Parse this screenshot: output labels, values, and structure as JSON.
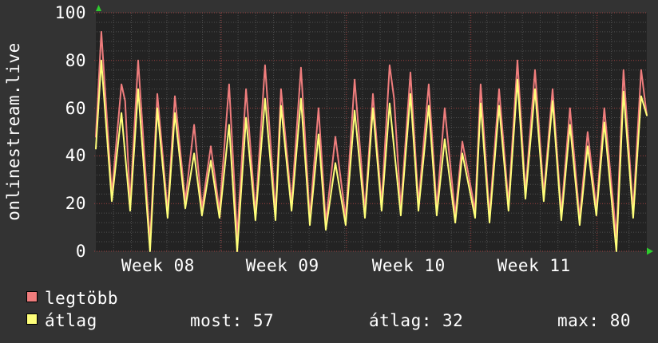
{
  "graph": {
    "vertical_label": "onlinestream.live",
    "colors": {
      "background": "#333333",
      "canvas": "#232323",
      "grid_minor": "#4f4f4f",
      "grid_major": "#9c4040",
      "text": "#ffffff",
      "arrow": "#2ecc2e",
      "series_max": "#ef7d7d",
      "series_avg": "#ffff7a"
    }
  },
  "chart_data": {
    "type": "line",
    "title": "",
    "vertical_label": "onlinestream.live",
    "grid": true,
    "legend_position": "bottom-left",
    "x_axis": {
      "unit": "days",
      "total_days": 31,
      "week_gridlines_days": [
        7.05,
        14.1,
        21.1,
        28.2
      ],
      "tick_labels": [
        {
          "label": "Week 08",
          "day": 3.5
        },
        {
          "label": "Week 09",
          "day": 10.5
        },
        {
          "label": "Week 10",
          "day": 17.6
        },
        {
          "label": "Week 11",
          "day": 24.65
        }
      ]
    },
    "y_axis": {
      "min": 0,
      "max": 100,
      "major_step": 20,
      "minor_step": 4,
      "tick_labels": [
        {
          "label": "100",
          "value": 100
        },
        {
          "label": "80",
          "value": 80
        },
        {
          "label": "60",
          "value": 60
        },
        {
          "label": "40",
          "value": 40
        },
        {
          "label": "20",
          "value": 20
        },
        {
          "label": "0",
          "value": 0
        }
      ]
    },
    "series": [
      {
        "name": "legtöbb",
        "role": "max",
        "color": "#ef7d7d",
        "points": [
          [
            0,
            48
          ],
          [
            0.31,
            92
          ],
          [
            0.9,
            24
          ],
          [
            1.44,
            70
          ],
          [
            1.65,
            63
          ],
          [
            1.93,
            20
          ],
          [
            2.38,
            80
          ],
          [
            3.05,
            4
          ],
          [
            3.46,
            66
          ],
          [
            4.04,
            17
          ],
          [
            4.45,
            65
          ],
          [
            5.03,
            21
          ],
          [
            5.53,
            53
          ],
          [
            5.97,
            18
          ],
          [
            6.47,
            44
          ],
          [
            6.96,
            17
          ],
          [
            7.5,
            70
          ],
          [
            7.95,
            6
          ],
          [
            8.45,
            68
          ],
          [
            8.98,
            16
          ],
          [
            9.52,
            78
          ],
          [
            10.11,
            16
          ],
          [
            10.42,
            68
          ],
          [
            11.01,
            20
          ],
          [
            11.54,
            77
          ],
          [
            12.04,
            14
          ],
          [
            12.53,
            60
          ],
          [
            12.94,
            12
          ],
          [
            13.48,
            48
          ],
          [
            14.06,
            14
          ],
          [
            14.56,
            72
          ],
          [
            15.14,
            17
          ],
          [
            15.59,
            66
          ],
          [
            16.08,
            20
          ],
          [
            16.53,
            78
          ],
          [
            16.78,
            64
          ],
          [
            17.16,
            18
          ],
          [
            17.7,
            75
          ],
          [
            18.15,
            20
          ],
          [
            18.73,
            70
          ],
          [
            19.18,
            18
          ],
          [
            19.63,
            60
          ],
          [
            20.22,
            15
          ],
          [
            20.62,
            46
          ],
          [
            21.34,
            17
          ],
          [
            21.65,
            70
          ],
          [
            22.15,
            15
          ],
          [
            22.69,
            68
          ],
          [
            23.22,
            20
          ],
          [
            23.72,
            80
          ],
          [
            24.17,
            25
          ],
          [
            24.71,
            76
          ],
          [
            25.2,
            24
          ],
          [
            25.7,
            68
          ],
          [
            26.19,
            16
          ],
          [
            26.68,
            60
          ],
          [
            27.22,
            14
          ],
          [
            27.67,
            50
          ],
          [
            28.16,
            18
          ],
          [
            28.61,
            60
          ],
          [
            29.29,
            6
          ],
          [
            29.69,
            76
          ],
          [
            30.23,
            17
          ],
          [
            30.68,
            76
          ],
          [
            31,
            57
          ]
        ]
      },
      {
        "name": "átlag",
        "role": "average",
        "color": "#ffff7a",
        "points": [
          [
            0,
            43
          ],
          [
            0.31,
            80
          ],
          [
            0.9,
            21
          ],
          [
            1.44,
            58
          ],
          [
            1.93,
            17
          ],
          [
            2.38,
            68
          ],
          [
            3.05,
            0
          ],
          [
            3.46,
            60
          ],
          [
            4.04,
            14
          ],
          [
            4.45,
            58
          ],
          [
            5.03,
            18
          ],
          [
            5.53,
            41
          ],
          [
            5.97,
            15
          ],
          [
            6.47,
            38
          ],
          [
            6.96,
            14
          ],
          [
            7.5,
            53
          ],
          [
            7.95,
            0
          ],
          [
            8.45,
            56
          ],
          [
            8.98,
            13
          ],
          [
            9.52,
            64
          ],
          [
            10.11,
            13
          ],
          [
            10.42,
            61
          ],
          [
            11.01,
            17
          ],
          [
            11.54,
            64
          ],
          [
            12.04,
            11
          ],
          [
            12.53,
            49
          ],
          [
            12.94,
            9
          ],
          [
            13.48,
            37
          ],
          [
            14.06,
            11
          ],
          [
            14.56,
            59
          ],
          [
            15.14,
            14
          ],
          [
            15.59,
            60
          ],
          [
            16.08,
            17
          ],
          [
            16.53,
            62
          ],
          [
            17.16,
            15
          ],
          [
            17.7,
            66
          ],
          [
            18.15,
            17
          ],
          [
            18.73,
            61
          ],
          [
            19.18,
            15
          ],
          [
            19.63,
            47
          ],
          [
            20.22,
            12
          ],
          [
            20.62,
            41
          ],
          [
            21.34,
            14
          ],
          [
            21.65,
            62
          ],
          [
            22.15,
            12
          ],
          [
            22.69,
            61
          ],
          [
            23.22,
            17
          ],
          [
            23.72,
            72
          ],
          [
            24.17,
            22
          ],
          [
            24.71,
            68
          ],
          [
            25.2,
            21
          ],
          [
            25.7,
            63
          ],
          [
            26.19,
            13
          ],
          [
            26.68,
            53
          ],
          [
            27.22,
            11
          ],
          [
            27.67,
            44
          ],
          [
            28.16,
            15
          ],
          [
            28.61,
            54
          ],
          [
            29.29,
            0
          ],
          [
            29.69,
            67
          ],
          [
            30.23,
            14
          ],
          [
            30.68,
            65
          ],
          [
            31,
            57
          ]
        ]
      }
    ],
    "stats": {
      "most": 57,
      "atlag": 32,
      "max": 80
    }
  },
  "legend": {
    "items": [
      {
        "label": "legtöbb",
        "color": "#ef7d7d"
      },
      {
        "label": "átlag",
        "color": "#ffff7a"
      }
    ],
    "stats": [
      {
        "text": "most: 57"
      },
      {
        "text": "átlag: 32"
      },
      {
        "text": "max: 80"
      }
    ]
  }
}
